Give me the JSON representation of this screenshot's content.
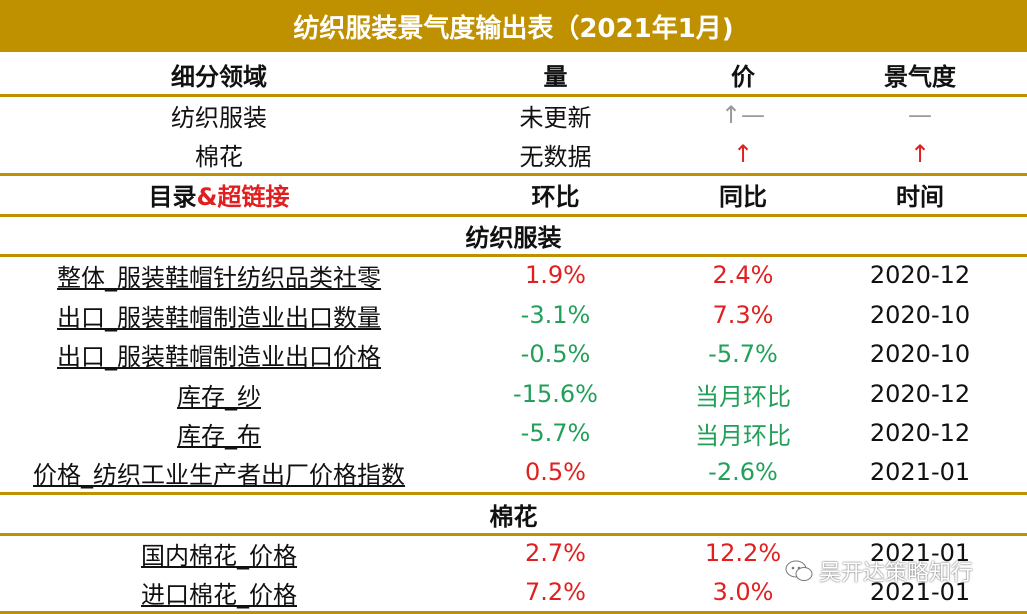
{
  "title": "纺织服装景气度输出表（2021年1月)",
  "header1": {
    "domain": "细分领域",
    "volume": "量",
    "price": "价",
    "sentiment": "景气度"
  },
  "overview": [
    {
      "name": "纺织服装",
      "volume": "未更新",
      "price": "↑—",
      "sentiment": "—"
    },
    {
      "name": "棉花",
      "volume": "无数据",
      "price": "↑",
      "sentiment": "↑"
    }
  ],
  "header2": {
    "catalog_prefix": "目录",
    "catalog_suffix": "&超链接",
    "mom": "环比",
    "yoy": "同比",
    "time": "时间"
  },
  "sections": [
    {
      "name": "纺织服装",
      "rows": [
        {
          "name": "整体_服装鞋帽针纺织品类社零",
          "mom": "1.9%",
          "yoy": "2.4%",
          "time": "2020-12"
        },
        {
          "name": "出口_服装鞋帽制造业出口数量",
          "mom": "-3.1%",
          "yoy": "7.3%",
          "time": "2020-10"
        },
        {
          "name": "出口_服装鞋帽制造业出口价格",
          "mom": "-0.5%",
          "yoy": "-5.7%",
          "time": "2020-10"
        },
        {
          "name": "库存_纱",
          "mom": "-15.6%",
          "yoy": "当月环比",
          "time": "2020-12"
        },
        {
          "name": "库存_布",
          "mom": "-5.7%",
          "yoy": "当月环比",
          "time": "2020-12"
        },
        {
          "name": "价格_纺织工业生产者出厂价格指数",
          "mom": "0.5%",
          "yoy": "-2.6%",
          "time": "2021-01"
        }
      ]
    },
    {
      "name": "棉花",
      "rows": [
        {
          "name": "国内棉花_价格",
          "mom": "2.7%",
          "yoy": "12.2%",
          "time": "2021-01"
        },
        {
          "name": "进口棉花_价格",
          "mom": "7.2%",
          "yoy": "3.0%",
          "time": "2021-01"
        }
      ]
    }
  ],
  "watermark": "吴开达策略知行",
  "colors": {
    "gold": "#bf9000",
    "red": "#e02020",
    "green": "#22a05a",
    "gray": "#9a9a9a"
  }
}
